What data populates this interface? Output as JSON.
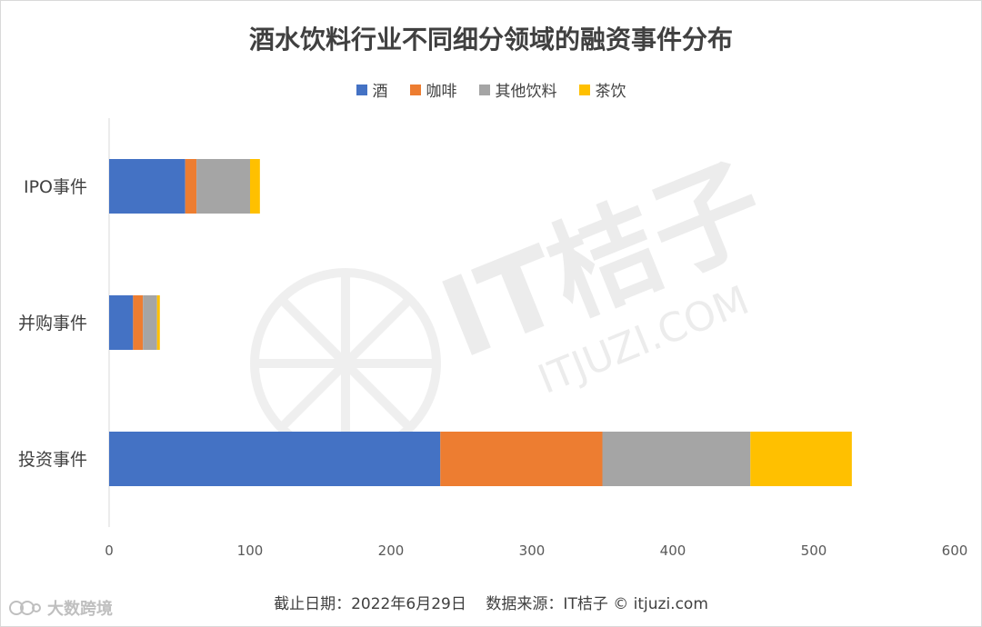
{
  "chart_data": {
    "type": "bar",
    "orientation": "horizontal",
    "stacked": true,
    "title": "酒水饮料行业不同细分领域的融资事件分布",
    "categories": [
      "IPO事件",
      "并购事件",
      "投资事件"
    ],
    "series": [
      {
        "name": "酒",
        "color": "#4472c4",
        "values": [
          54,
          17,
          235
        ]
      },
      {
        "name": "咖啡",
        "color": "#ed7d31",
        "values": [
          8,
          7,
          115
        ]
      },
      {
        "name": "其他饮料",
        "color": "#a5a5a5",
        "values": [
          38,
          10,
          105
        ]
      },
      {
        "name": "茶饮",
        "color": "#ffc000",
        "values": [
          7,
          2,
          72
        ]
      }
    ],
    "xlim": [
      0,
      600
    ],
    "xticks": [
      0,
      100,
      200,
      300,
      400,
      500,
      600
    ],
    "xlabel": "",
    "ylabel": "",
    "grid": false,
    "legend": "top-center"
  },
  "footer": {
    "note": "截止日期：2022年6月29日    数据来源：IT桔子 © itjuzi.com"
  },
  "watermark": {
    "brand": "IT桔子",
    "site": "ITJUZI.COM"
  },
  "corner_logo": {
    "text": "大数跨境"
  }
}
